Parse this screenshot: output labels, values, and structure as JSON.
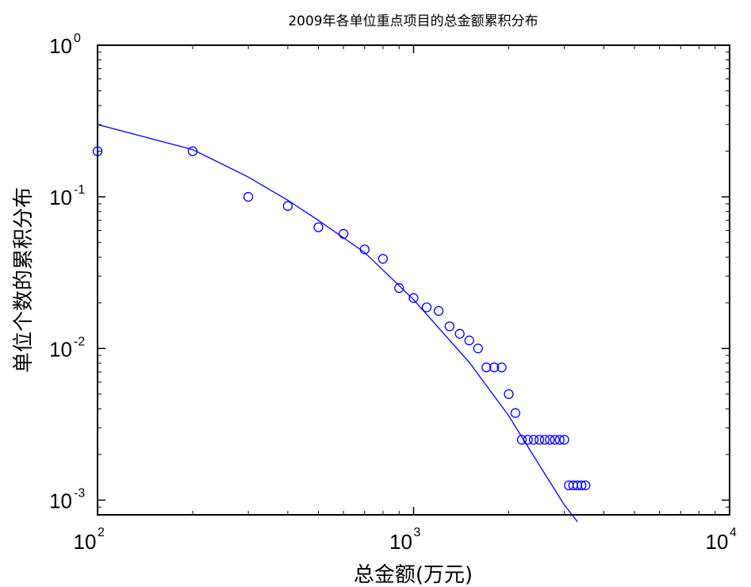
{
  "chart_data": {
    "type": "scatter",
    "title": "2009年各单位重点项目的总金额累积分布",
    "xlabel": "总金额(万元)",
    "ylabel": "单位个数的累积分布",
    "xscale": "log",
    "yscale": "log",
    "xlim": [
      100,
      10000
    ],
    "ylim": [
      0.0008,
      1
    ],
    "x_ticks": [
      {
        "base": "10",
        "exp": "2",
        "value": 100
      },
      {
        "base": "10",
        "exp": "3",
        "value": 1000
      },
      {
        "base": "10",
        "exp": "4",
        "value": 10000
      }
    ],
    "y_ticks": [
      {
        "base": "10",
        "exp": "0",
        "value": 1
      },
      {
        "base": "10",
        "exp": "-1",
        "value": 0.1
      },
      {
        "base": "10",
        "exp": "-2",
        "value": 0.01
      },
      {
        "base": "10",
        "exp": "-3",
        "value": 0.001
      }
    ],
    "grid": false,
    "colors": {
      "marker": "#0000ff",
      "fit_line": "#0000ff",
      "axes": "#000000"
    },
    "series": [
      {
        "kind": "markers",
        "marker": "circle",
        "points": [
          [
            100,
            0.2
          ],
          [
            200,
            0.2
          ],
          [
            300,
            0.1
          ],
          [
            400,
            0.087
          ],
          [
            500,
            0.063
          ],
          [
            600,
            0.057
          ],
          [
            700,
            0.045
          ],
          [
            800,
            0.039
          ],
          [
            900,
            0.025
          ],
          [
            1000,
            0.0215
          ],
          [
            1100,
            0.0187
          ],
          [
            1200,
            0.0177
          ],
          [
            1300,
            0.014
          ],
          [
            1400,
            0.0125
          ],
          [
            1500,
            0.0113
          ],
          [
            1600,
            0.01
          ],
          [
            1700,
            0.0075
          ],
          [
            1800,
            0.0075
          ],
          [
            1900,
            0.0075
          ],
          [
            2000,
            0.005
          ],
          [
            2100,
            0.00375
          ],
          [
            2200,
            0.0025
          ],
          [
            2300,
            0.0025
          ],
          [
            2400,
            0.0025
          ],
          [
            2500,
            0.0025
          ],
          [
            2600,
            0.0025
          ],
          [
            2700,
            0.0025
          ],
          [
            2800,
            0.0025
          ],
          [
            2900,
            0.0025
          ],
          [
            3000,
            0.0025
          ],
          [
            3100,
            0.00125
          ],
          [
            3200,
            0.00125
          ],
          [
            3300,
            0.00125
          ],
          [
            3400,
            0.00125
          ],
          [
            3500,
            0.00125
          ]
        ]
      },
      {
        "kind": "line",
        "points": [
          [
            100,
            0.3
          ],
          [
            200,
            0.205
          ],
          [
            300,
            0.135
          ],
          [
            400,
            0.095
          ],
          [
            500,
            0.07
          ],
          [
            700,
            0.043
          ],
          [
            1000,
            0.021
          ],
          [
            1500,
            0.0081
          ],
          [
            2000,
            0.0036
          ],
          [
            2500,
            0.0017
          ],
          [
            3000,
            0.00093
          ],
          [
            3300,
            0.00072
          ]
        ]
      }
    ]
  }
}
